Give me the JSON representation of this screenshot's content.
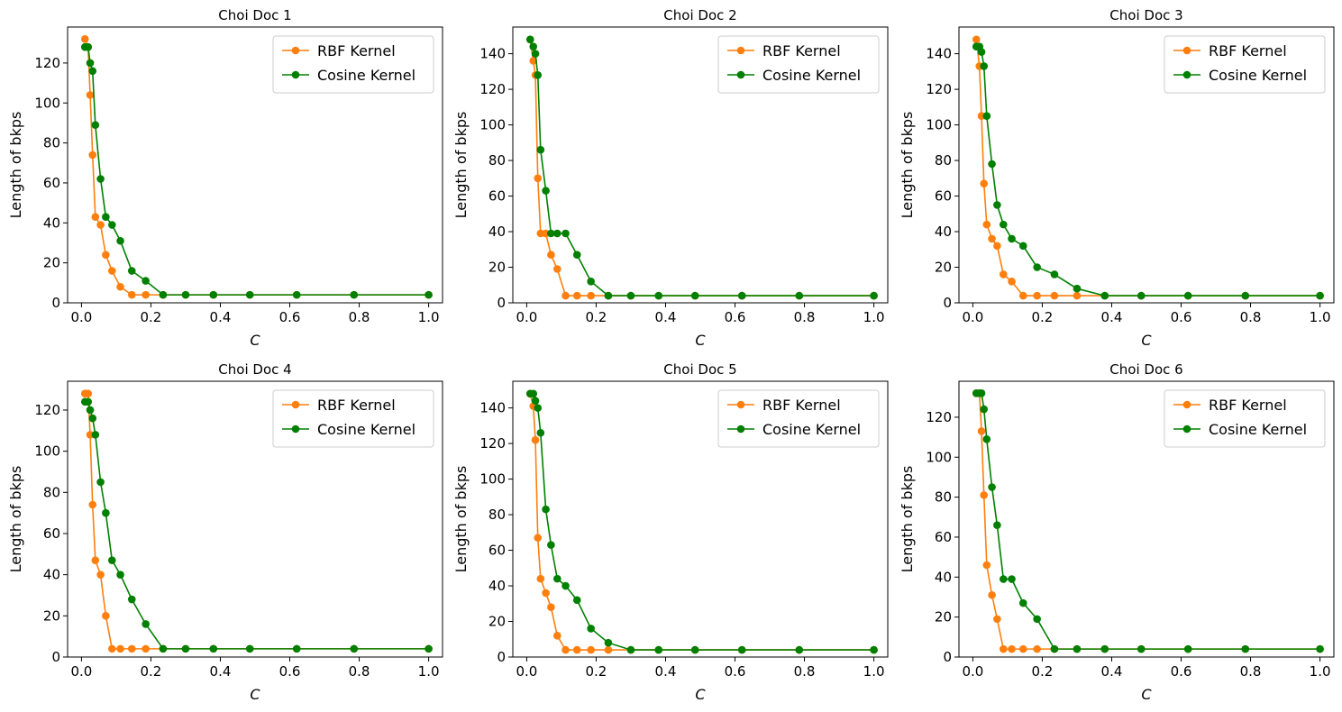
{
  "colors": {
    "rbf": "#ff7f0e",
    "cosine": "#008000"
  },
  "charts": [
    {
      "type": "line",
      "title": "Choi Doc 1",
      "xlabel": "C",
      "ylabel": "Length of bkps",
      "xlim": [
        -0.04,
        1.04
      ],
      "ylim": [
        0,
        138
      ],
      "yticks": [
        "0",
        "20",
        "40",
        "60",
        "80",
        "100",
        "120"
      ],
      "xticks": [
        "0.0",
        "0.2",
        "0.4",
        "0.6",
        "0.8",
        "1.0"
      ],
      "legend_position": "upper right",
      "series": [
        {
          "name": "RBF Kernel",
          "x": [
            0.01,
            0.019,
            0.025,
            0.032,
            0.04,
            0.055,
            0.07,
            0.088,
            0.112,
            0.145,
            0.185,
            0.235,
            0.3,
            0.38,
            0.485,
            0.62,
            0.785,
            1.0
          ],
          "y": [
            132,
            128,
            104,
            74,
            43,
            39,
            24,
            16,
            8,
            4,
            4,
            4,
            4,
            4,
            4,
            4,
            4,
            4
          ]
        },
        {
          "name": "Cosine Kernel",
          "x": [
            0.01,
            0.019,
            0.025,
            0.032,
            0.04,
            0.055,
            0.07,
            0.088,
            0.112,
            0.145,
            0.185,
            0.235,
            0.3,
            0.38,
            0.485,
            0.62,
            0.785,
            1.0
          ],
          "y": [
            128,
            128,
            120,
            116,
            89,
            62,
            43,
            39,
            31,
            16,
            11,
            4,
            4,
            4,
            4,
            4,
            4,
            4
          ]
        }
      ]
    },
    {
      "type": "line",
      "title": "Choi Doc 2",
      "xlabel": "C",
      "ylabel": "Length of bkps",
      "xlim": [
        -0.04,
        1.04
      ],
      "ylim": [
        0,
        155
      ],
      "yticks": [
        "0",
        "20",
        "40",
        "60",
        "80",
        "100",
        "120",
        "140"
      ],
      "xticks": [
        "0.0",
        "0.2",
        "0.4",
        "0.6",
        "0.8",
        "1.0"
      ],
      "legend_position": "upper right",
      "series": [
        {
          "name": "RBF Kernel",
          "x": [
            0.01,
            0.019,
            0.025,
            0.032,
            0.04,
            0.055,
            0.07,
            0.088,
            0.112,
            0.145,
            0.185,
            0.235,
            0.3,
            0.38,
            0.485,
            0.62,
            0.785,
            1.0
          ],
          "y": [
            148,
            136,
            128,
            70,
            39,
            39,
            27,
            19,
            4,
            4,
            4,
            4,
            4,
            4,
            4,
            4,
            4,
            4
          ]
        },
        {
          "name": "Cosine Kernel",
          "x": [
            0.01,
            0.019,
            0.025,
            0.032,
            0.04,
            0.055,
            0.07,
            0.088,
            0.112,
            0.145,
            0.185,
            0.235,
            0.3,
            0.38,
            0.485,
            0.62,
            0.785,
            1.0
          ],
          "y": [
            148,
            144,
            140,
            128,
            86,
            63,
            39,
            39,
            39,
            27,
            12,
            4,
            4,
            4,
            4,
            4,
            4,
            4
          ]
        }
      ]
    },
    {
      "type": "line",
      "title": "Choi Doc 3",
      "xlabel": "C",
      "ylabel": "Length of bkps",
      "xlim": [
        -0.04,
        1.04
      ],
      "ylim": [
        0,
        155
      ],
      "yticks": [
        "0",
        "20",
        "40",
        "60",
        "80",
        "100",
        "120",
        "140"
      ],
      "xticks": [
        "0.0",
        "0.2",
        "0.4",
        "0.6",
        "0.8",
        "1.0"
      ],
      "legend_position": "upper right",
      "series": [
        {
          "name": "RBF Kernel",
          "x": [
            0.01,
            0.019,
            0.025,
            0.032,
            0.04,
            0.055,
            0.07,
            0.088,
            0.112,
            0.145,
            0.185,
            0.235,
            0.3,
            0.38,
            0.485,
            0.62,
            0.785,
            1.0
          ],
          "y": [
            148,
            133,
            105,
            67,
            44,
            36,
            32,
            16,
            12,
            4,
            4,
            4,
            4,
            4,
            4,
            4,
            4,
            4
          ]
        },
        {
          "name": "Cosine Kernel",
          "x": [
            0.01,
            0.019,
            0.025,
            0.032,
            0.04,
            0.055,
            0.07,
            0.088,
            0.112,
            0.145,
            0.185,
            0.235,
            0.3,
            0.38,
            0.485,
            0.62,
            0.785,
            1.0
          ],
          "y": [
            144,
            144,
            141,
            133,
            105,
            78,
            55,
            44,
            36,
            32,
            20,
            16,
            8,
            4,
            4,
            4,
            4,
            4
          ]
        }
      ]
    },
    {
      "type": "line",
      "title": "Choi Doc 4",
      "xlabel": "C",
      "ylabel": "Length of bkps",
      "xlim": [
        -0.04,
        1.04
      ],
      "ylim": [
        0,
        134
      ],
      "yticks": [
        "0",
        "20",
        "40",
        "60",
        "80",
        "100",
        "120"
      ],
      "xticks": [
        "0.0",
        "0.2",
        "0.4",
        "0.6",
        "0.8",
        "1.0"
      ],
      "legend_position": "upper right",
      "series": [
        {
          "name": "RBF Kernel",
          "x": [
            0.01,
            0.019,
            0.025,
            0.032,
            0.04,
            0.055,
            0.07,
            0.088,
            0.112,
            0.145,
            0.185,
            0.235,
            0.3,
            0.38,
            0.485,
            0.62,
            0.785,
            1.0
          ],
          "y": [
            128,
            128,
            108,
            74,
            47,
            40,
            20,
            4,
            4,
            4,
            4,
            4,
            4,
            4,
            4,
            4,
            4,
            4
          ]
        },
        {
          "name": "Cosine Kernel",
          "x": [
            0.01,
            0.019,
            0.025,
            0.032,
            0.04,
            0.055,
            0.07,
            0.088,
            0.112,
            0.145,
            0.185,
            0.235,
            0.3,
            0.38,
            0.485,
            0.62,
            0.785,
            1.0
          ],
          "y": [
            124,
            124,
            120,
            116,
            108,
            85,
            70,
            47,
            40,
            28,
            16,
            4,
            4,
            4,
            4,
            4,
            4,
            4
          ]
        }
      ]
    },
    {
      "type": "line",
      "title": "Choi Doc 5",
      "xlabel": "C",
      "ylabel": "Length of bkps",
      "xlim": [
        -0.04,
        1.04
      ],
      "ylim": [
        0,
        155
      ],
      "yticks": [
        "0",
        "20",
        "40",
        "60",
        "80",
        "100",
        "120",
        "140"
      ],
      "xticks": [
        "0.0",
        "0.2",
        "0.4",
        "0.6",
        "0.8",
        "1.0"
      ],
      "legend_position": "upper right",
      "series": [
        {
          "name": "RBF Kernel",
          "x": [
            0.01,
            0.019,
            0.025,
            0.032,
            0.04,
            0.055,
            0.07,
            0.088,
            0.112,
            0.145,
            0.185,
            0.235,
            0.3,
            0.38,
            0.485,
            0.62,
            0.785,
            1.0
          ],
          "y": [
            148,
            141,
            122,
            67,
            44,
            36,
            28,
            12,
            4,
            4,
            4,
            4,
            4,
            4,
            4,
            4,
            4,
            4
          ]
        },
        {
          "name": "Cosine Kernel",
          "x": [
            0.01,
            0.019,
            0.025,
            0.032,
            0.04,
            0.055,
            0.07,
            0.088,
            0.112,
            0.145,
            0.185,
            0.235,
            0.3,
            0.38,
            0.485,
            0.62,
            0.785,
            1.0
          ],
          "y": [
            148,
            148,
            144,
            140,
            126,
            83,
            63,
            44,
            40,
            32,
            16,
            8,
            4,
            4,
            4,
            4,
            4,
            4
          ]
        }
      ]
    },
    {
      "type": "line",
      "title": "Choi Doc 6",
      "xlabel": "C",
      "ylabel": "Length of bkps",
      "xlim": [
        -0.04,
        1.04
      ],
      "ylim": [
        0,
        138
      ],
      "yticks": [
        "0",
        "20",
        "40",
        "60",
        "80",
        "100",
        "120"
      ],
      "xticks": [
        "0.0",
        "0.2",
        "0.4",
        "0.6",
        "0.8",
        "1.0"
      ],
      "legend_position": "upper right",
      "series": [
        {
          "name": "RBF Kernel",
          "x": [
            0.01,
            0.019,
            0.025,
            0.032,
            0.04,
            0.055,
            0.07,
            0.088,
            0.112,
            0.145,
            0.185,
            0.235,
            0.3,
            0.38,
            0.485,
            0.62,
            0.785,
            1.0
          ],
          "y": [
            132,
            132,
            113,
            81,
            46,
            31,
            19,
            4,
            4,
            4,
            4,
            4,
            4,
            4,
            4,
            4,
            4,
            4
          ]
        },
        {
          "name": "Cosine Kernel",
          "x": [
            0.01,
            0.019,
            0.025,
            0.032,
            0.04,
            0.055,
            0.07,
            0.088,
            0.112,
            0.145,
            0.185,
            0.235,
            0.3,
            0.38,
            0.485,
            0.62,
            0.785,
            1.0
          ],
          "y": [
            132,
            132,
            132,
            124,
            109,
            85,
            66,
            39,
            39,
            27,
            19,
            4,
            4,
            4,
            4,
            4,
            4,
            4
          ]
        }
      ]
    }
  ]
}
